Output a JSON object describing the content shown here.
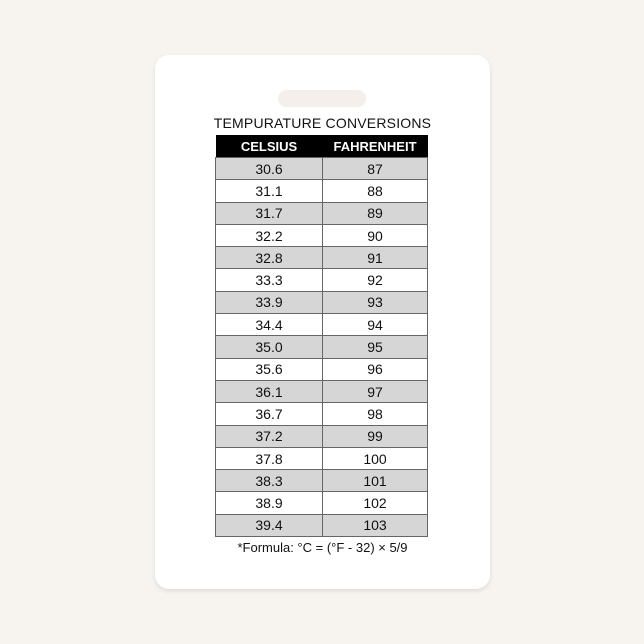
{
  "title": "TEMPURATURE CONVERSIONS",
  "headers": [
    "CELSIUS",
    "FAHRENHEIT"
  ],
  "rows": [
    [
      "30.6",
      "87"
    ],
    [
      "31.1",
      "88"
    ],
    [
      "31.7",
      "89"
    ],
    [
      "32.2",
      "90"
    ],
    [
      "32.8",
      "91"
    ],
    [
      "33.3",
      "92"
    ],
    [
      "33.9",
      "93"
    ],
    [
      "34.4",
      "94"
    ],
    [
      "35.0",
      "95"
    ],
    [
      "35.6",
      "96"
    ],
    [
      "36.1",
      "97"
    ],
    [
      "36.7",
      "98"
    ],
    [
      "37.2",
      "99"
    ],
    [
      "37.8",
      "100"
    ],
    [
      "38.3",
      "101"
    ],
    [
      "38.9",
      "102"
    ],
    [
      "39.4",
      "103"
    ]
  ],
  "formula": "*Formula: °C = (°F - 32) × 5/9",
  "colors": {
    "header_bg": "#000000",
    "shaded_row": "#d6d6d6",
    "background": "#f7f4ef"
  }
}
